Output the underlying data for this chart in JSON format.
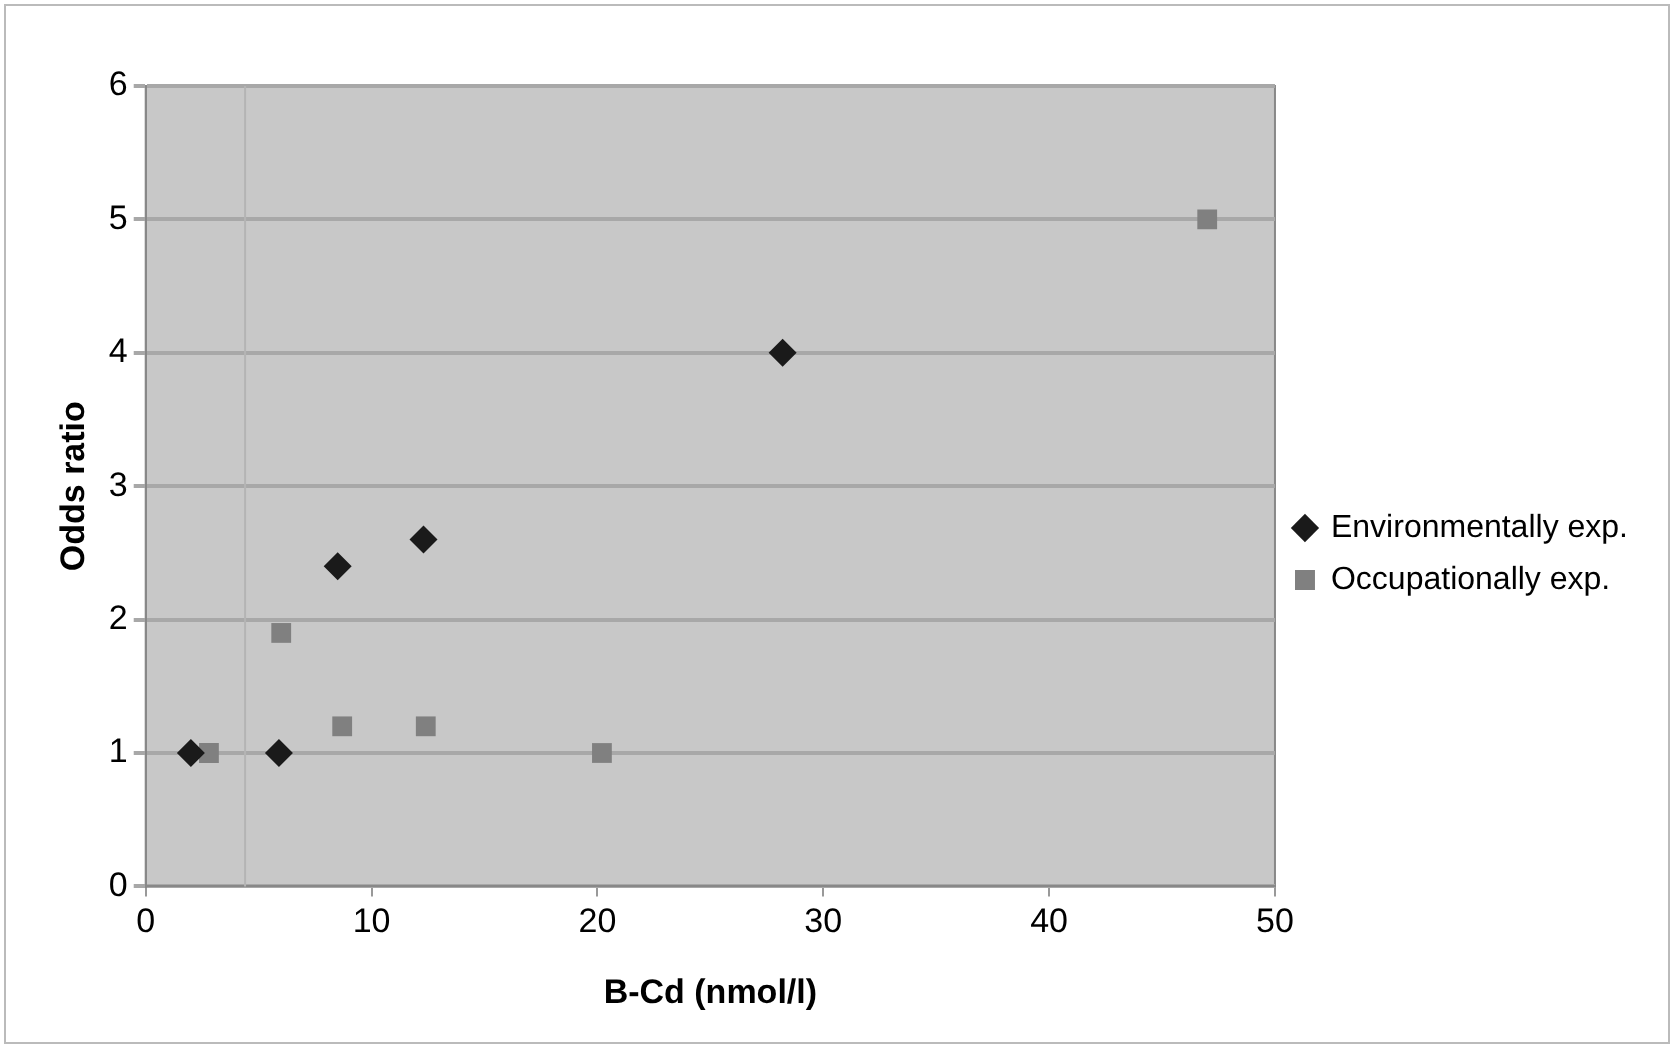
{
  "chart_data": {
    "type": "scatter",
    "xlabel": "B-Cd (nmol/l)",
    "ylabel": "Odds ratio",
    "xlim": [
      0,
      50
    ],
    "xticks": [
      0,
      10,
      20,
      30,
      40,
      50
    ],
    "ylim": [
      0,
      6
    ],
    "yticks": [
      0,
      1,
      2,
      3,
      4,
      5,
      6
    ],
    "grid": "y",
    "legend": "right",
    "ref_lines": [
      {
        "axis": "x",
        "value": 4.4,
        "color": "#b4b4b4"
      }
    ],
    "series": [
      {
        "name": "Environmentally exp.",
        "color": "#1a1a1a",
        "marker": "diamond",
        "x": [
          2.0,
          5.9,
          8.5,
          12.3,
          28.2
        ],
        "values": [
          1,
          1,
          2.4,
          2.6,
          4
        ]
      },
      {
        "name": "Occupationally exp.",
        "color": "#808080",
        "marker": "square",
        "x": [
          2.8,
          6.0,
          8.7,
          12.4,
          20.2,
          47.0
        ],
        "values": [
          1,
          1.9,
          1.2,
          1.2,
          1.0,
          5.0
        ]
      }
    ]
  }
}
